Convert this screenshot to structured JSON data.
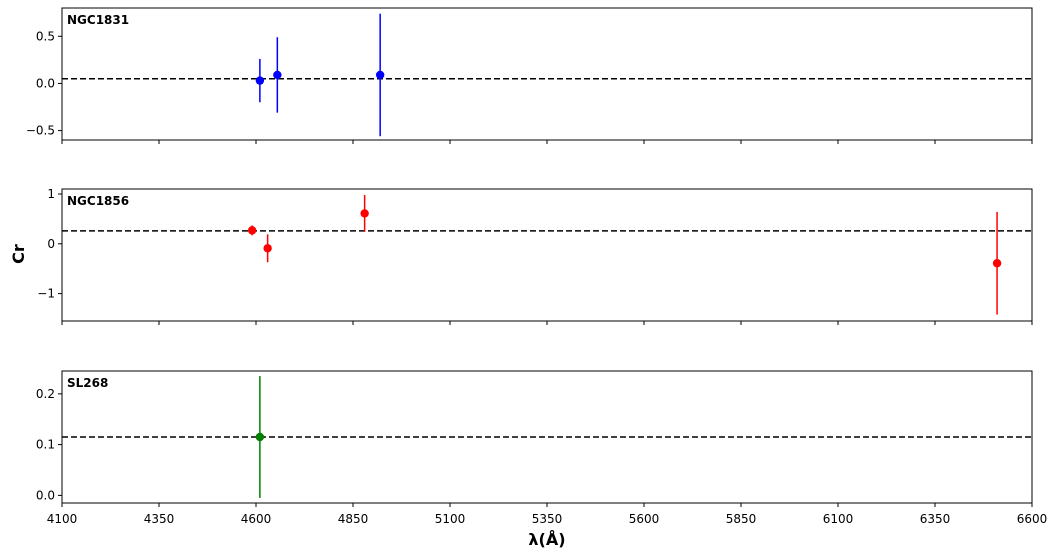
{
  "chart_data": {
    "type": "scatter",
    "ylabel": "Cr",
    "xlabel": "λ(Å)",
    "xlim": [
      4100,
      6600
    ],
    "xticks": [
      4100,
      4350,
      4600,
      4850,
      5100,
      5350,
      5600,
      5850,
      6100,
      6350,
      6600
    ],
    "grid": false,
    "panels": [
      {
        "title": "NGC1831",
        "color": "#0000ff",
        "ylim": [
          -0.6,
          0.8
        ],
        "yticks": [
          -0.5,
          0.0,
          0.5
        ],
        "ytick_labels": [
          "−0.5",
          "0.0",
          "0.5"
        ],
        "mean_line": 0.05,
        "points": [
          {
            "x": 4610,
            "y": 0.03,
            "yerr": 0.23
          },
          {
            "x": 4655,
            "y": 0.09,
            "yerr": 0.4
          },
          {
            "x": 4920,
            "y": 0.09,
            "yerr": 0.65
          }
        ]
      },
      {
        "title": "NGC1856",
        "color": "#ff0000",
        "ylim": [
          -1.55,
          1.1
        ],
        "yticks": [
          -1,
          0,
          1
        ],
        "ytick_labels": [
          "−1",
          "0",
          "1"
        ],
        "mean_line": 0.26,
        "points": [
          {
            "x": 4590,
            "y": 0.27,
            "yerr": 0.1
          },
          {
            "x": 4630,
            "y": -0.09,
            "yerr": 0.28
          },
          {
            "x": 4880,
            "y": 0.61,
            "yerr": 0.37
          },
          {
            "x": 6510,
            "y": -0.39,
            "yerr": 1.03
          }
        ]
      },
      {
        "title": "SL268",
        "color": "#008000",
        "ylim": [
          -0.015,
          0.245
        ],
        "yticks": [
          0.0,
          0.1,
          0.2
        ],
        "ytick_labels": [
          "0.0",
          "0.1",
          "0.2"
        ],
        "mean_line": 0.115,
        "points": [
          {
            "x": 4610,
            "y": 0.115,
            "yerr": 0.12
          }
        ]
      }
    ]
  }
}
